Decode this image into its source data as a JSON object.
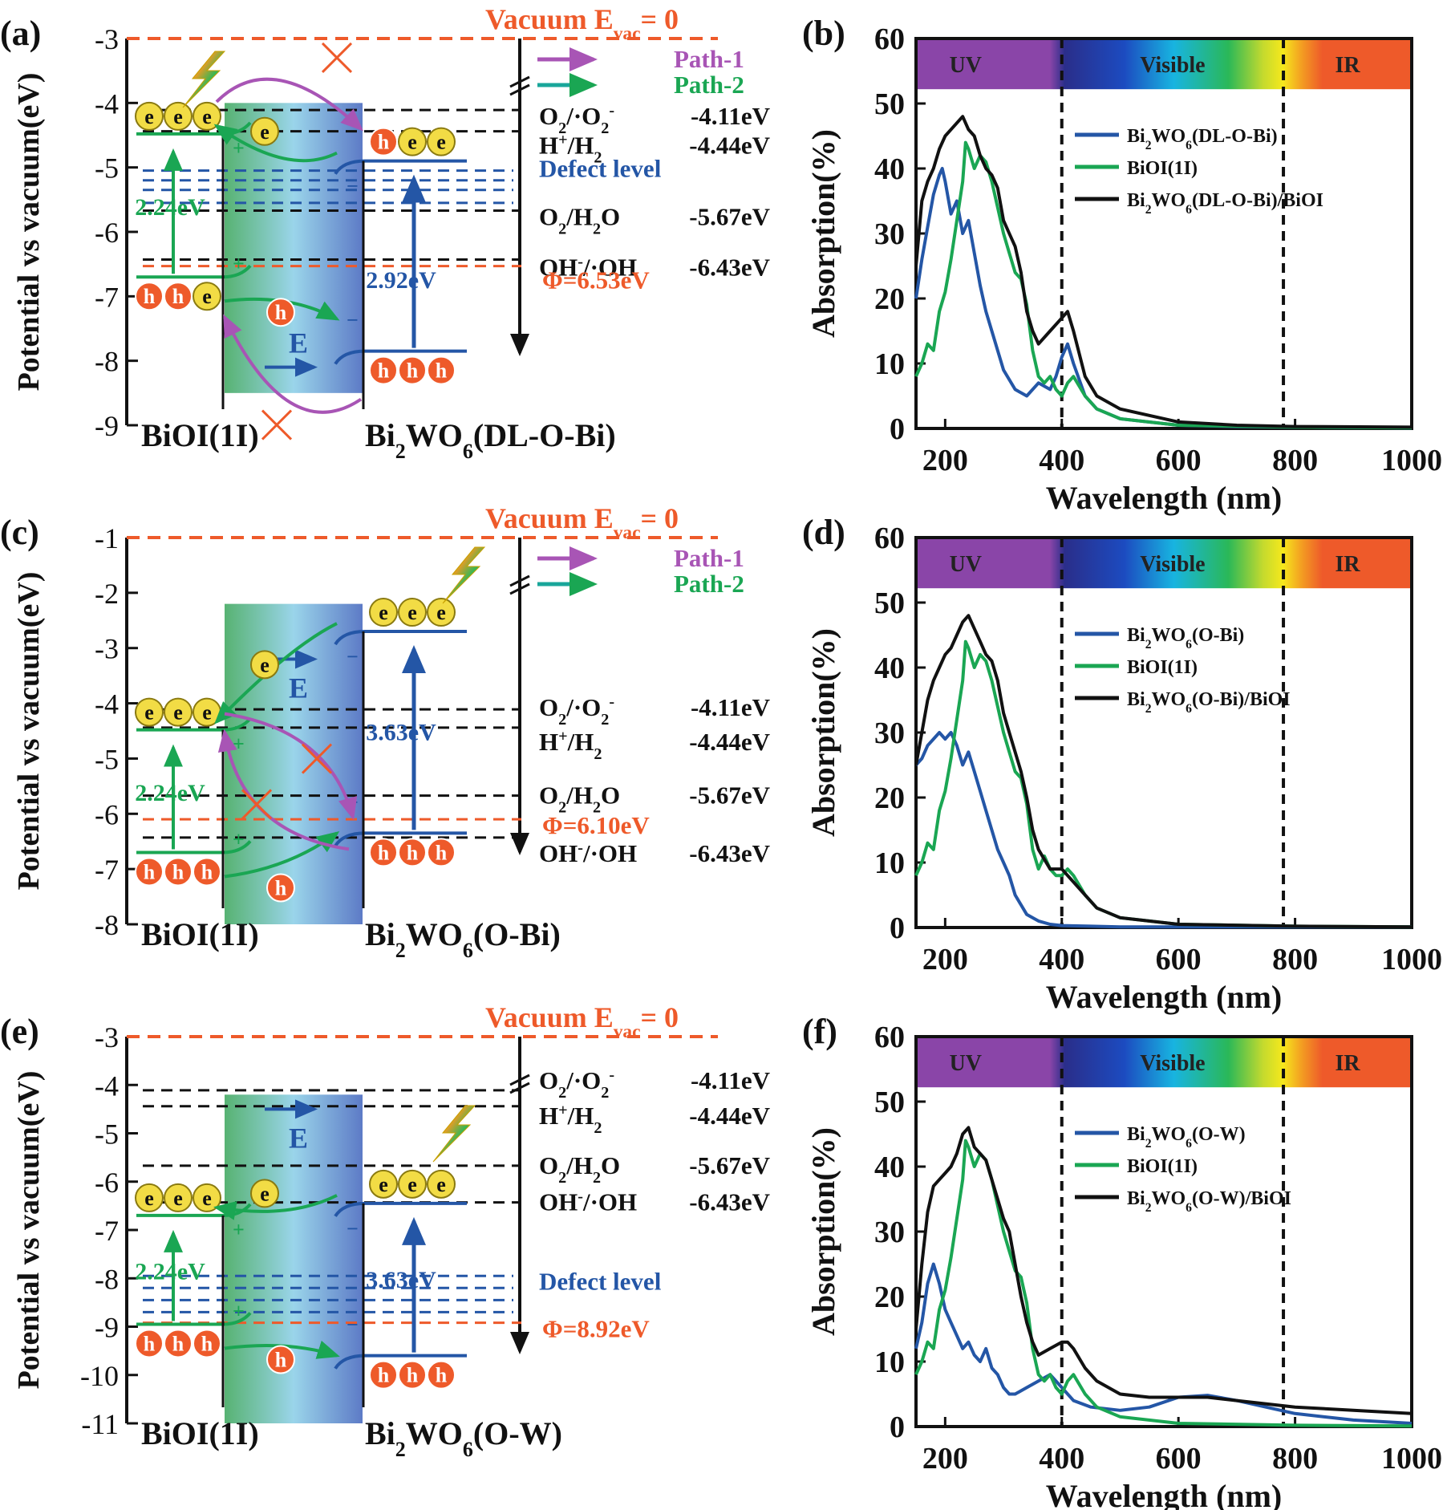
{
  "colors": {
    "path1": "#a855b5",
    "path2": "#1aa653",
    "blue": "#2456a6",
    "vac": "#ee5a2a",
    "black": "#111111",
    "uv": "#8a45a8",
    "ir": "#ee5a2a",
    "e_fill": "#f2dc45",
    "h_fill": "#ee5a2a"
  },
  "common": {
    "left_ylabel": "Potential vs vacuum(eV)",
    "right_ylabel": "Absorption(%)",
    "right_xlabel": "Wavelength (nm)",
    "vacuum_label": "Vacuum  E",
    "vacuum_sub": "vac",
    "vacuum_eq": "= 0",
    "path1": "Path-1",
    "path2": "Path-2",
    "defect": "Defect level",
    "bioi": "BiOI(1I)",
    "gap_bioi": "2.24eV",
    "field": "E",
    "e": "e",
    "h": "h",
    "uv": "UV",
    "visible": "Visible",
    "ir": "IR",
    "redox": [
      {
        "a": "O",
        "a_sub": "2",
        "b": "/·O",
        "b_sub": "2",
        "b_sup": "-",
        "v": "-4.11eV",
        "level": -4.11
      },
      {
        "a": "H",
        "a_sup": "+",
        "b": "/H",
        "b_sub": "2",
        "v": "-4.44eV",
        "level": -4.44
      },
      {
        "a": "O",
        "a_sub": "2",
        "b": "/H",
        "b_sub": "2",
        "c": "O",
        "v": "-5.67eV",
        "level": -5.67
      },
      {
        "a": "OH",
        "a_sup": "-",
        "b": "/·OH",
        "v": "-6.43eV",
        "level": -6.43
      }
    ]
  },
  "panels": [
    {
      "tag": "(a)",
      "yticks": [
        "-3",
        "-4",
        "-5",
        "-6",
        "-7",
        "-8",
        "-9"
      ],
      "ymin": -9,
      "ymax": -3,
      "material_main": "Bi",
      "material_sub": "2",
      "material_rest": "WO",
      "material_sub2": "6",
      "material_tail": "(DL-O-Bi)",
      "gap2": "2.92eV",
      "phi": "Φ=6.53eV",
      "phi_level": -6.53,
      "has_path1": true,
      "has_defect": true
    },
    {
      "tag": "(c)",
      "yticks": [
        "-1",
        "-2",
        "-3",
        "-4",
        "-5",
        "-6",
        "-7",
        "-8"
      ],
      "ymin": -8,
      "ymax": -1,
      "material_main": "Bi",
      "material_sub": "2",
      "material_rest": "WO",
      "material_sub2": "6",
      "material_tail": "(O-Bi)",
      "gap2": "3.63eV",
      "phi": "Φ=6.10eV",
      "phi_level": -6.1,
      "has_path1": true,
      "has_defect": false
    },
    {
      "tag": "(e)",
      "yticks": [
        "-3",
        "-4",
        "-5",
        "-6",
        "-7",
        "-8",
        "-9",
        "-10",
        "-11"
      ],
      "ymin": -11,
      "ymax": -3,
      "material_main": "Bi",
      "material_sub": "2",
      "material_rest": "WO",
      "material_sub2": "6",
      "material_tail": "(O-W)",
      "gap2": "3.63eV",
      "phi": "Φ=8.92eV",
      "phi_level": -8.92,
      "has_path1": false,
      "has_defect": true
    }
  ],
  "chart_data": [
    {
      "tag": "(b)",
      "type": "line",
      "title": "",
      "xlabel": "Wavelength (nm)",
      "ylabel": "Absorption(%)",
      "xlim": [
        150,
        1000
      ],
      "ylim": [
        0,
        60
      ],
      "xticks": [
        200,
        400,
        600,
        800,
        1000
      ],
      "yticks": [
        0,
        10,
        20,
        30,
        40,
        50,
        60
      ],
      "vlines": [
        400,
        780
      ],
      "series": [
        {
          "name": "Bi2WO6(DL-O-Bi)",
          "label_main": "Bi",
          "label_sub": "2",
          "label_mid": "WO",
          "label_sub2": "6",
          "label_tail": "(DL-O-Bi)",
          "color": "#2456a6",
          "x": [
            150,
            160,
            170,
            180,
            190,
            195,
            200,
            210,
            220,
            230,
            240,
            250,
            260,
            270,
            280,
            290,
            300,
            320,
            340,
            360,
            380,
            390,
            400,
            410,
            420,
            440,
            460,
            500,
            600,
            700,
            800,
            1000
          ],
          "y": [
            20,
            26,
            31,
            36,
            39,
            40,
            38,
            33,
            35,
            30,
            32,
            27,
            22,
            18,
            15,
            12,
            9,
            6,
            5,
            7,
            6,
            8,
            11,
            13,
            10,
            5,
            3,
            1.5,
            0.5,
            0.3,
            0.2,
            0.1
          ]
        },
        {
          "name": "BiOI(1I)",
          "label_main": "BiOI(1I)",
          "color": "#1aa653",
          "x": [
            150,
            160,
            170,
            180,
            190,
            200,
            210,
            220,
            230,
            235,
            240,
            250,
            260,
            270,
            280,
            290,
            300,
            310,
            320,
            330,
            340,
            350,
            360,
            370,
            380,
            390,
            400,
            410,
            420,
            440,
            460,
            500,
            600,
            800,
            1000
          ],
          "y": [
            8,
            10,
            13,
            12,
            18,
            21,
            26,
            32,
            38,
            44,
            43,
            40,
            42,
            41,
            38,
            34,
            30,
            27,
            24,
            23,
            19,
            12,
            8,
            7,
            8,
            6,
            5,
            7,
            8,
            5,
            3,
            1.5,
            0.5,
            0.2,
            0.1
          ]
        },
        {
          "name": "Bi2WO6(DL-O-Bi)/BiOI",
          "label_main": "Bi",
          "label_sub": "2",
          "label_mid": "WO",
          "label_sub2": "6",
          "label_tail": "(DL-O-Bi)/BiOI",
          "color": "#111111",
          "x": [
            150,
            160,
            170,
            180,
            190,
            200,
            210,
            220,
            230,
            240,
            250,
            260,
            270,
            280,
            290,
            300,
            310,
            320,
            330,
            340,
            350,
            360,
            380,
            400,
            410,
            420,
            440,
            460,
            500,
            600,
            700,
            800,
            1000
          ],
          "y": [
            25,
            35,
            38,
            40,
            43,
            45,
            46,
            47,
            48,
            46,
            45,
            42,
            40,
            39,
            37,
            32,
            30,
            28,
            24,
            18,
            15,
            13,
            15,
            17,
            18,
            15,
            8,
            5,
            3,
            1,
            0.5,
            0.3,
            0.2
          ]
        }
      ]
    },
    {
      "tag": "(d)",
      "type": "line",
      "title": "",
      "xlabel": "Wavelength (nm)",
      "ylabel": "Absorption(%)",
      "xlim": [
        150,
        1000
      ],
      "ylim": [
        0,
        60
      ],
      "xticks": [
        200,
        400,
        600,
        800,
        1000
      ],
      "yticks": [
        0,
        10,
        20,
        30,
        40,
        50,
        60
      ],
      "vlines": [
        400,
        780
      ],
      "series": [
        {
          "name": "Bi2WO6(O-Bi)",
          "label_main": "Bi",
          "label_sub": "2",
          "label_mid": "WO",
          "label_sub2": "6",
          "label_tail": "(O-Bi)",
          "color": "#2456a6",
          "x": [
            150,
            160,
            170,
            180,
            190,
            200,
            210,
            220,
            230,
            240,
            250,
            260,
            270,
            280,
            290,
            300,
            310,
            320,
            340,
            360,
            380,
            400,
            450,
            500,
            600,
            800,
            1000
          ],
          "y": [
            25,
            26,
            28,
            29,
            30,
            29,
            30,
            28,
            25,
            27,
            24,
            21,
            18,
            15,
            12,
            10,
            8,
            5,
            2,
            1,
            0.5,
            0.3,
            0.2,
            0.1,
            0.1,
            0.1,
            0.1
          ]
        },
        {
          "name": "BiOI(1I)",
          "label_main": "BiOI(1I)",
          "color": "#1aa653",
          "x": [
            150,
            160,
            170,
            180,
            190,
            200,
            210,
            220,
            230,
            235,
            240,
            250,
            260,
            270,
            280,
            290,
            300,
            310,
            320,
            330,
            340,
            350,
            360,
            370,
            380,
            390,
            400,
            410,
            420,
            440,
            460,
            500,
            600,
            800,
            1000
          ],
          "y": [
            8,
            10,
            13,
            12,
            18,
            21,
            26,
            32,
            38,
            44,
            43,
            40,
            42,
            41,
            38,
            34,
            30,
            27,
            24,
            23,
            19,
            12,
            9,
            11,
            9,
            8,
            8,
            9,
            8,
            5,
            3,
            1.5,
            0.5,
            0.2,
            0.1
          ]
        },
        {
          "name": "Bi2WO6(O-Bi)/BiOI",
          "label_main": "Bi",
          "label_sub": "2",
          "label_mid": "WO",
          "label_sub2": "6",
          "label_tail": "(O-Bi)/BiOI",
          "color": "#111111",
          "x": [
            150,
            160,
            170,
            180,
            190,
            200,
            210,
            220,
            230,
            240,
            250,
            260,
            270,
            280,
            290,
            300,
            310,
            320,
            330,
            340,
            350,
            360,
            380,
            400,
            410,
            420,
            440,
            460,
            500,
            600,
            800,
            1000
          ],
          "y": [
            25,
            30,
            35,
            38,
            40,
            42,
            43,
            45,
            47,
            48,
            46,
            44,
            42,
            41,
            38,
            33,
            30,
            27,
            24,
            20,
            15,
            12,
            9,
            9,
            8,
            7,
            5,
            3,
            1.5,
            0.5,
            0.2,
            0.1
          ]
        }
      ]
    },
    {
      "tag": "(f)",
      "type": "line",
      "title": "",
      "xlabel": "Wavelength (nm)",
      "ylabel": "Absorption(%)",
      "xlim": [
        150,
        1000
      ],
      "ylim": [
        0,
        60
      ],
      "xticks": [
        200,
        400,
        600,
        800,
        1000
      ],
      "yticks": [
        0,
        10,
        20,
        30,
        40,
        50,
        60
      ],
      "vlines": [
        400,
        780
      ],
      "series": [
        {
          "name": "Bi2WO6(O-W)",
          "label_main": "Bi",
          "label_sub": "2",
          "label_mid": "WO",
          "label_sub2": "6",
          "label_tail": "(O-W)",
          "color": "#2456a6",
          "x": [
            150,
            160,
            170,
            180,
            190,
            200,
            210,
            220,
            230,
            240,
            250,
            260,
            270,
            280,
            290,
            300,
            310,
            320,
            340,
            360,
            380,
            400,
            420,
            450,
            500,
            550,
            600,
            650,
            700,
            750,
            800,
            900,
            1000
          ],
          "y": [
            12,
            16,
            22,
            25,
            22,
            18,
            16,
            14,
            12,
            13,
            11,
            10,
            12,
            9,
            8,
            6,
            5,
            5,
            6,
            7,
            8,
            6,
            4,
            3,
            2.5,
            3,
            4.5,
            4.8,
            4,
            3,
            2,
            1,
            0.5
          ]
        },
        {
          "name": "BiOI(1I)",
          "label_main": "BiOI(1I)",
          "color": "#1aa653",
          "x": [
            150,
            160,
            170,
            180,
            190,
            200,
            210,
            220,
            230,
            235,
            240,
            250,
            260,
            270,
            280,
            290,
            300,
            310,
            320,
            330,
            340,
            350,
            360,
            370,
            380,
            390,
            400,
            410,
            420,
            440,
            460,
            500,
            600,
            800,
            1000
          ],
          "y": [
            8,
            10,
            13,
            12,
            18,
            21,
            26,
            32,
            38,
            44,
            43,
            40,
            42,
            41,
            38,
            34,
            30,
            27,
            24,
            23,
            19,
            12,
            8,
            7,
            8,
            6,
            5,
            7,
            8,
            5,
            3,
            1.5,
            0.5,
            0.2,
            0.1
          ]
        },
        {
          "name": "Bi2WO6(O-W)/BiOI",
          "label_main": "Bi",
          "label_sub": "2",
          "label_mid": "WO",
          "label_sub2": "6",
          "label_tail": "(O-W)/BiOI",
          "color": "#111111",
          "x": [
            150,
            160,
            170,
            180,
            190,
            200,
            210,
            220,
            230,
            240,
            250,
            260,
            270,
            280,
            290,
            300,
            310,
            320,
            330,
            340,
            350,
            360,
            380,
            400,
            410,
            420,
            440,
            460,
            500,
            550,
            600,
            650,
            700,
            800,
            900,
            1000
          ],
          "y": [
            15,
            25,
            33,
            37,
            38,
            39,
            40,
            42,
            45,
            46,
            43,
            42,
            41,
            38,
            35,
            32,
            30,
            25,
            20,
            16,
            13,
            11,
            12,
            13,
            13,
            12,
            9,
            7,
            5,
            4.5,
            4.5,
            4.5,
            4,
            3,
            2.5,
            2
          ]
        }
      ]
    }
  ]
}
